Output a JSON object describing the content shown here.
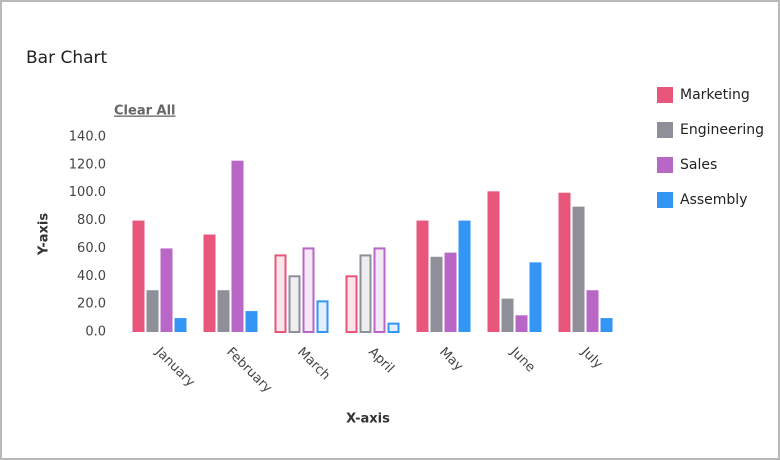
{
  "chart_data": {
    "type": "bar",
    "title": "Bar Chart",
    "clear_button": "Clear All",
    "x_label": "X-axis",
    "y_label": "Y-axis",
    "categories": [
      "January",
      "February",
      "March",
      "April",
      "May",
      "June",
      "July"
    ],
    "series": [
      {
        "name": "Marketing",
        "color": "#e9567b",
        "values": [
          80,
          70,
          55,
          40,
          80,
          101,
          100
        ]
      },
      {
        "name": "Engineering",
        "color": "#8e8f99",
        "values": [
          30,
          30,
          40,
          55,
          54,
          24,
          90
        ]
      },
      {
        "name": "Sales",
        "color": "#b967c7",
        "values": [
          60,
          123,
          60,
          60,
          57,
          12,
          30
        ]
      },
      {
        "name": "Assembly",
        "color": "#3396f5",
        "values": [
          10,
          15,
          22,
          6,
          80,
          50,
          10
        ]
      }
    ],
    "outlined_categories": [
      2,
      3
    ],
    "ylim": [
      0,
      140
    ],
    "yticks": [
      {
        "value": 0,
        "label": "0.0"
      },
      {
        "value": 20,
        "label": "20.0"
      },
      {
        "value": 40,
        "label": "40.0"
      },
      {
        "value": 60,
        "label": "60.0"
      },
      {
        "value": 80,
        "label": "80.0"
      },
      {
        "value": 100,
        "label": "100.0"
      },
      {
        "value": 120,
        "label": "120.0"
      },
      {
        "value": 140,
        "label": "140.0"
      }
    ],
    "legend": "right"
  }
}
